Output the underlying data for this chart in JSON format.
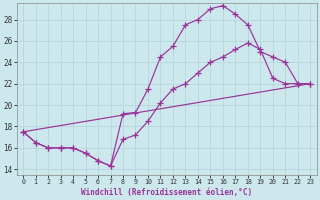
{
  "xlabel": "Windchill (Refroidissement éolien,°C)",
  "xlim": [
    -0.5,
    23.5
  ],
  "ylim": [
    13.5,
    29.5
  ],
  "yticks": [
    14,
    16,
    18,
    20,
    22,
    24,
    26,
    28
  ],
  "xticks": [
    0,
    1,
    2,
    3,
    4,
    5,
    6,
    7,
    8,
    9,
    10,
    11,
    12,
    13,
    14,
    15,
    16,
    17,
    18,
    19,
    20,
    21,
    22,
    23
  ],
  "bg_color": "#cce8ed",
  "grid_color": "#aad4da",
  "line_color": "#993399",
  "line1_x": [
    0,
    1,
    2,
    3,
    4,
    5,
    6,
    7,
    8,
    9,
    10,
    11,
    12,
    13,
    14,
    15,
    16,
    17,
    18,
    19,
    20,
    21,
    22,
    23
  ],
  "line1_y": [
    17.5,
    16.5,
    16.0,
    16.0,
    16.0,
    15.5,
    14.8,
    14.3,
    19.2,
    19.3,
    21.5,
    24.5,
    25.5,
    27.5,
    28.0,
    29.0,
    29.3,
    28.5,
    27.5,
    25.0,
    24.5,
    24.0,
    22.0,
    22.0
  ],
  "line2_x": [
    0,
    1,
    2,
    3,
    4,
    5,
    6,
    7,
    8,
    9,
    10,
    11,
    12,
    13,
    14,
    15,
    16,
    17,
    18,
    19,
    20,
    21,
    22,
    23
  ],
  "line2_y": [
    17.5,
    16.5,
    16.0,
    16.0,
    16.0,
    15.5,
    14.8,
    14.3,
    16.8,
    17.2,
    18.5,
    20.2,
    21.5,
    22.0,
    23.0,
    24.0,
    24.5,
    25.2,
    25.8,
    25.2,
    22.5,
    22.0,
    22.0,
    22.0
  ],
  "line3_x": [
    0,
    23
  ],
  "line3_y": [
    17.5,
    22.0
  ]
}
